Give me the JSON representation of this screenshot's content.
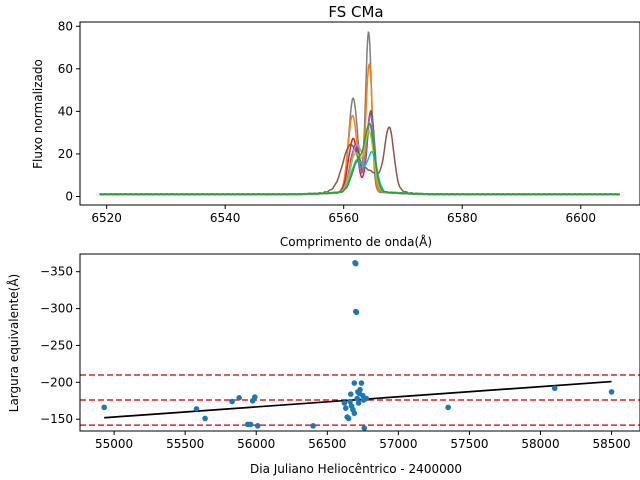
{
  "chart_data": [
    {
      "type": "line",
      "title": "FS CMa",
      "xlabel": "Comprimento de onda(Å)",
      "ylabel": "Fluxo normalizado",
      "xlim": [
        6515.5,
        6610
      ],
      "ylim": [
        -4,
        82
      ],
      "xticks": [
        6520,
        6540,
        6560,
        6580,
        6600
      ],
      "yticks": [
        0,
        20,
        40,
        60,
        80
      ],
      "xrange_data": [
        6518.8,
        6606.6
      ],
      "series": [
        {
          "color": "#7f7f7f",
          "peaks": [
            [
              6561.6,
              44,
              0.75
            ],
            [
              6564.2,
              75,
              0.5
            ]
          ]
        },
        {
          "color": "#ff7f0e",
          "peaks": [
            [
              6561.5,
              36,
              0.75
            ],
            [
              6564.3,
              60,
              0.55
            ]
          ]
        },
        {
          "color": "#1f77b4",
          "peaks": [
            [
              6562.0,
              22,
              0.8
            ],
            [
              6564.6,
              38,
              0.6
            ]
          ]
        },
        {
          "color": "#d62728",
          "peaks": [
            [
              6561.6,
              25,
              0.8
            ],
            [
              6564.5,
              37,
              0.6
            ]
          ]
        },
        {
          "color": "#9467bd",
          "peaks": [
            [
              6561.8,
              20,
              0.8
            ],
            [
              6564.5,
              36,
              0.65
            ]
          ]
        },
        {
          "color": "#8c564b",
          "peaks": [
            [
              6561.0,
              16,
              1.2
            ],
            [
              6567.7,
              27,
              0.75
            ]
          ],
          "base": 10,
          "base_center": 6563.8,
          "base_width": 2.8
        },
        {
          "color": "#e377c2",
          "peaks": [
            [
              6562.2,
              22,
              0.9
            ],
            [
              6564.4,
              31,
              0.7
            ]
          ]
        },
        {
          "color": "#bcbd22",
          "peaks": [
            [
              6562.0,
              18,
              0.9
            ],
            [
              6564.3,
              28,
              0.75
            ]
          ]
        },
        {
          "color": "#17becf",
          "peaks": [
            [
              6562.3,
              15,
              1.0
            ],
            [
              6564.8,
              18,
              0.8
            ]
          ]
        },
        {
          "color": "#2ca02c",
          "peaks": [
            [
              6562.4,
              14,
              1.0
            ],
            [
              6564.4,
              30,
              0.8
            ]
          ]
        }
      ]
    },
    {
      "type": "scatter",
      "xlabel": "Dia Juliano Heliocêntrico - 2400000",
      "ylabel": "Largura equivalente(Å)",
      "xlim": [
        54760,
        58700
      ],
      "ylim": [
        -134,
        -374
      ],
      "inverted_y": true,
      "xticks": [
        55000,
        55500,
        56000,
        56500,
        57000,
        57500,
        58000,
        58500
      ],
      "yticks": [
        -150,
        -200,
        -250,
        -300,
        -350
      ],
      "ytick_labels": [
        "−150",
        "−200",
        "−250",
        "−300",
        "−350"
      ],
      "point_color": "#1f77b4",
      "points": [
        [
          54930,
          -166
        ],
        [
          55580,
          -164
        ],
        [
          55640,
          -151
        ],
        [
          55830,
          -174
        ],
        [
          55880,
          -179
        ],
        [
          55940,
          -143
        ],
        [
          55960,
          -143
        ],
        [
          55975,
          -175
        ],
        [
          55990,
          -180
        ],
        [
          56010,
          -141
        ],
        [
          56400,
          -141
        ],
        [
          56620,
          -172
        ],
        [
          56630,
          -165
        ],
        [
          56640,
          -153
        ],
        [
          56650,
          -151
        ],
        [
          56660,
          -174
        ],
        [
          56665,
          -184
        ],
        [
          56670,
          -168
        ],
        [
          56680,
          -163
        ],
        [
          56690,
          -158
        ],
        [
          56690,
          -199
        ],
        [
          56695,
          -362
        ],
        [
          56700,
          -361
        ],
        [
          56700,
          -296
        ],
        [
          56705,
          -295
        ],
        [
          56710,
          -178
        ],
        [
          56715,
          -187
        ],
        [
          56720,
          -172
        ],
        [
          56725,
          -185
        ],
        [
          56730,
          -190
        ],
        [
          56740,
          -199
        ],
        [
          56750,
          -182
        ],
        [
          56755,
          -176
        ],
        [
          56760,
          -138
        ],
        [
          56775,
          -178
        ],
        [
          57350,
          -166
        ],
        [
          58100,
          -192
        ],
        [
          58500,
          -187
        ]
      ],
      "fit_line": [
        [
          54930,
          -152
        ],
        [
          58500,
          -201
        ]
      ],
      "hlines": [
        -142,
        -176,
        -210
      ],
      "hline_color": "#d62728",
      "fit_color": "#000000"
    }
  ]
}
